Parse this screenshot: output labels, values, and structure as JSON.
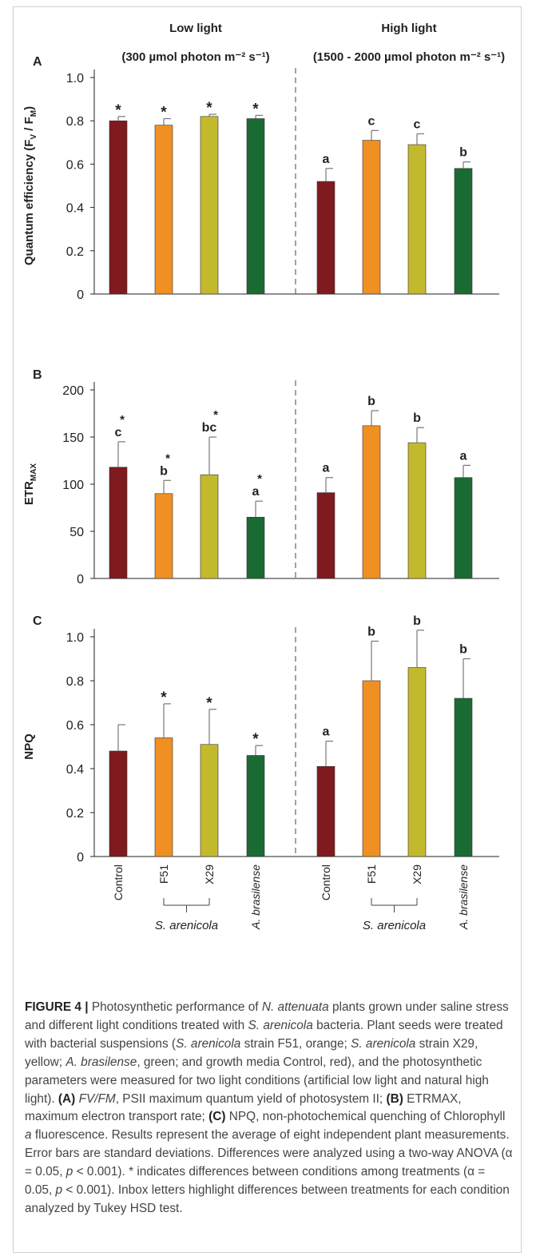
{
  "header": {
    "low_title": "Low light",
    "low_subtitle": "(300 µmol photon m⁻² s⁻¹)",
    "high_title": "High light",
    "high_subtitle": "(1500 - 2000 µmol photon m⁻² s⁻¹)"
  },
  "chart_data": [
    {
      "type": "bar",
      "panel": "A",
      "ylabel": "Quantum efficiency (FV / FM)",
      "ylim": [
        0,
        1.0
      ],
      "yticks": [
        "0",
        "0.2",
        "0.4",
        "0.6",
        "0.8",
        "1.0"
      ],
      "categories": [
        "Control",
        "F51",
        "X29",
        "A. brasilense"
      ],
      "colors": [
        "#7f1a1f",
        "#f08f22",
        "#c3b92c",
        "#1a6b33"
      ],
      "groups": [
        {
          "condition": "Low light",
          "values": [
            0.8,
            0.78,
            0.82,
            0.81
          ],
          "errors": [
            0.02,
            0.03,
            0.01,
            0.015
          ],
          "labels": [
            "*",
            "*",
            "*",
            "*"
          ]
        },
        {
          "condition": "High light",
          "values": [
            0.52,
            0.71,
            0.69,
            0.58
          ],
          "errors": [
            0.06,
            0.045,
            0.05,
            0.03
          ],
          "labels": [
            "a",
            "c",
            "c",
            "b"
          ]
        }
      ]
    },
    {
      "type": "bar",
      "panel": "B",
      "ylabel": "ETRMAX",
      "ylim": [
        0,
        200
      ],
      "yticks": [
        "0",
        "50",
        "100",
        "150",
        "200"
      ],
      "categories": [
        "Control",
        "F51",
        "X29",
        "A. brasilense"
      ],
      "colors": [
        "#7f1a1f",
        "#f08f22",
        "#c3b92c",
        "#1a6b33"
      ],
      "groups": [
        {
          "condition": "Low light",
          "values": [
            118,
            90,
            110,
            65
          ],
          "errors": [
            27,
            14,
            40,
            17
          ],
          "labels": [
            "c",
            "b",
            "bc",
            "a"
          ],
          "stars": [
            "*",
            "*",
            "*",
            "*"
          ]
        },
        {
          "condition": "High light",
          "values": [
            91,
            162,
            144,
            107
          ],
          "errors": [
            16,
            16,
            16,
            13
          ],
          "labels": [
            "a",
            "b",
            "b",
            "a"
          ],
          "stars": [
            "",
            "",
            "",
            ""
          ]
        }
      ]
    },
    {
      "type": "bar",
      "panel": "C",
      "ylabel": "NPQ",
      "ylim": [
        0,
        1.0
      ],
      "yticks": [
        "0",
        "0.2",
        "0.4",
        "0.6",
        "0.8",
        "1.0"
      ],
      "categories": [
        "Control",
        "F51",
        "X29",
        "A. brasilense"
      ],
      "colors": [
        "#7f1a1f",
        "#f08f22",
        "#c3b92c",
        "#1a6b33"
      ],
      "groups": [
        {
          "condition": "Low light",
          "values": [
            0.48,
            0.54,
            0.51,
            0.46
          ],
          "errors": [
            0.12,
            0.155,
            0.16,
            0.045
          ],
          "labels": [
            "",
            "*",
            "*",
            "*"
          ]
        },
        {
          "condition": "High light",
          "values": [
            0.41,
            0.8,
            0.86,
            0.72
          ],
          "errors": [
            0.115,
            0.18,
            0.17,
            0.18
          ],
          "labels": [
            "a",
            "b",
            "b",
            "b"
          ]
        }
      ]
    }
  ],
  "xaxis": {
    "tick_labels": [
      "Control",
      "F51",
      "X29",
      "A. brasilense",
      "Control",
      "F51",
      "X29",
      "A. brasilense"
    ],
    "group_label_low": "S. arenicola",
    "group_label_high": "S. arenicola"
  },
  "caption": {
    "lead": "FIGURE 4 |",
    "s1": "Photosynthetic performance of",
    "s2": "N. attenuata",
    "s3": "plants grown under saline stress and different light conditions treated with",
    "s4": "S. arenicola",
    "s5": "bacteria. Plant seeds were treated with bacterial suspensions (",
    "s6": "S. arenicola",
    "s7": "strain F51, orange;",
    "s8": "S. arenicola",
    "s9": "strain X29, yellow;",
    "s10": "A. brasilense",
    "s11": ", green; and growth media Control, red), and the photosynthetic parameters were measured for two light conditions (artificial low light and natural high light).",
    "a_tag": "(A)",
    "a_text1": "FV/FM",
    "a_text2": ", PSII maximum quantum yield of photosystem II;",
    "b_tag": "(B)",
    "b_text1": "ETRMAX",
    "b_text2": ", maximum electron transport rate;",
    "c_tag": "(C)",
    "c_text1": "NPQ, non-photochemical quenching of Chlorophyll",
    "c_text2": "a",
    "c_text3": "fluorescence. Results represent the average of eight independent plant measurements. Error bars are standard deviations. Differences were analyzed using a two-way ANOVA (α = 0.05,",
    "c_text4": "p",
    "c_text5": "< 0.001). * indicates differences between conditions among treatments (α = 0.05,",
    "c_text6": "p",
    "c_text7": "< 0.001). Inbox letters highlight differences between treatments for each condition analyzed by Tukey HSD test."
  }
}
